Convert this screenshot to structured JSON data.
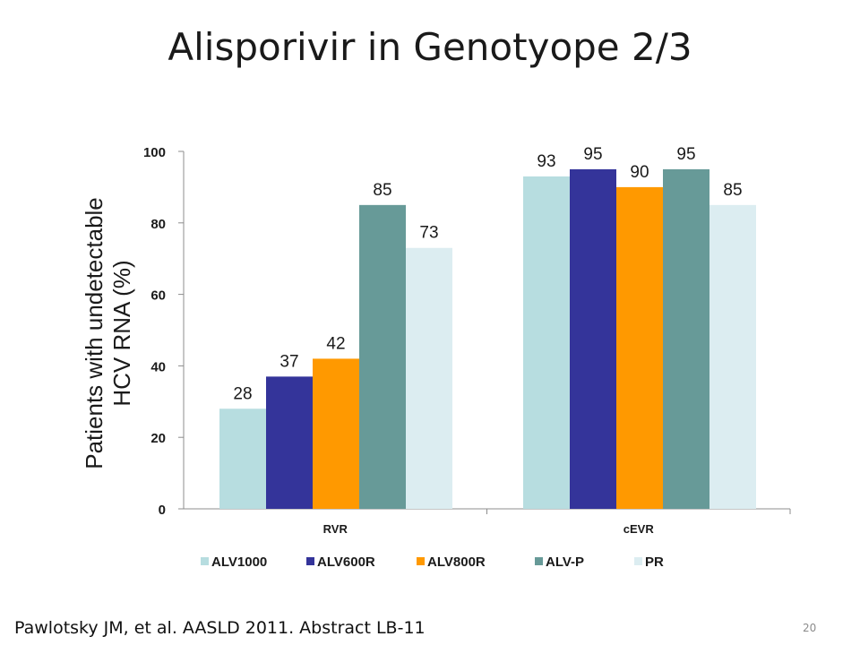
{
  "slide": {
    "title": "Alisporivir in Genotyope 2/3",
    "citation": "Pawlotsky JM, et al. AASLD 2011. Abstract LB-11",
    "page_number": "20"
  },
  "chart_data": {
    "type": "bar",
    "title": "",
    "ylabel_line1": "Patients with undetectable",
    "ylabel_line2": "HCV RNA (%)",
    "xlabel": "",
    "ylim": [
      0,
      100
    ],
    "yticks": [
      "0",
      "20",
      "40",
      "60",
      "80",
      "100"
    ],
    "categories": [
      "RVR",
      "cEVR"
    ],
    "series": [
      {
        "name": "ALV1000",
        "values": [
          28,
          93
        ],
        "color": "#b7dde0"
      },
      {
        "name": "ALV600R",
        "values": [
          37,
          95
        ],
        "color": "#34349a"
      },
      {
        "name": "ALV800R",
        "values": [
          42,
          90
        ],
        "color": "#ff9900"
      },
      {
        "name": "ALV-P",
        "values": [
          85,
          95
        ],
        "color": "#679a98"
      },
      {
        "name": "PR",
        "values": [
          73,
          85
        ],
        "color": "#dcedf1"
      }
    ],
    "data_labels": true,
    "grid": false,
    "legend_position": "bottom"
  }
}
